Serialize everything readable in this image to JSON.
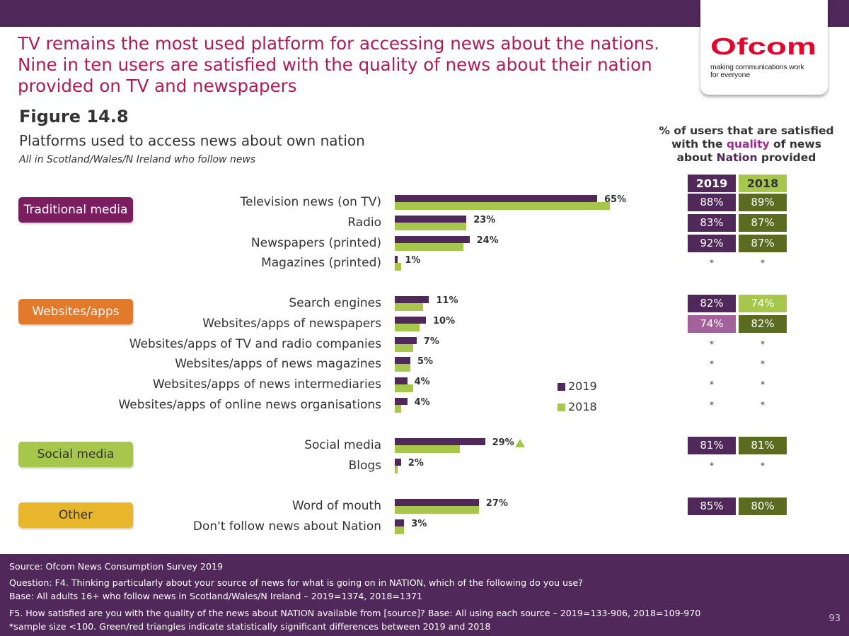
{
  "headline": [
    "TV remains the most used platform for accessing news about the nations.",
    "Nine in ten users are satisfied with the quality of news about their nation",
    "provided on TV and newspapers"
  ],
  "logo": {
    "word": "Ofcom",
    "tagline_1": "making communications work",
    "tagline_2": "for everyone",
    "color": "#e3052a"
  },
  "figure": {
    "number": "Figure 14.8",
    "title": "Platforms used to access news about own nation",
    "base": "All in Scotland/Wales/N Ireland  who follow news"
  },
  "satisfaction_heading": {
    "line1": "% of users that are satisfied",
    "line2_pre": "with the ",
    "line2_hl": "quality",
    "line2_post": " of news",
    "line3_pre": "about ",
    "line3_hl": "Nation",
    "line3_post": " provided"
  },
  "colors": {
    "y2019": "#51285a",
    "y2018": "#a6c74b",
    "traditional": "#7a1e5f",
    "websites": "#e37a2b",
    "social": "#a6c74b",
    "other": "#e8b62c",
    "sat_2019": "#51285a",
    "sat_2018_dark": "#5b6b20",
    "sat_2018_light": "#a6c74b",
    "sat_2019_light": "#a3619c"
  },
  "categories": [
    {
      "label": "Traditional media",
      "key": "traditional",
      "dark": false
    },
    {
      "label": "Websites/apps",
      "key": "websites",
      "dark": false
    },
    {
      "label": "Social media",
      "key": "social",
      "dark": true
    },
    {
      "label": "Other",
      "key": "other",
      "dark": true
    }
  ],
  "legend": [
    "2019",
    "2018"
  ],
  "satisfaction_years": [
    "2019",
    "2018"
  ],
  "chart_data": {
    "type": "bar",
    "orientation": "horizontal",
    "title": "Platforms used to access news about own nation",
    "unit": "%",
    "series_names": [
      "2019",
      "2018"
    ],
    "rows": [
      {
        "label": "Television news (on TV)",
        "v2019": 65,
        "v2018": 69,
        "value_label": "65%",
        "sat2019": "88%",
        "sat2018": "89%",
        "sig_up": false
      },
      {
        "label": "Radio",
        "v2019": 23,
        "v2018": 23,
        "value_label": "23%",
        "sat2019": "83%",
        "sat2018": "87%",
        "sig_up": false
      },
      {
        "label": "Newspapers (printed)",
        "v2019": 24,
        "v2018": 22,
        "value_label": "24%",
        "sat2019": "92%",
        "sat2018": "87%",
        "sig_up": false
      },
      {
        "label": "Magazines (printed)",
        "v2019": 1,
        "v2018": 2,
        "value_label": "1%",
        "sat2019": "*",
        "sat2018": "*",
        "sig_up": false
      },
      {
        "label": "Search engines",
        "v2019": 11,
        "v2018": 9,
        "value_label": "11%",
        "sat2019": "82%",
        "sat2018": "74%",
        "sig_up": false
      },
      {
        "label": "Websites/apps of newspapers",
        "v2019": 10,
        "v2018": 8,
        "value_label": "10%",
        "sat2019": "74%",
        "sat2018": "82%",
        "sig_up": false
      },
      {
        "label": "Websites/apps of TV and radio companies",
        "v2019": 7,
        "v2018": 6,
        "value_label": "7%",
        "sat2019": "*",
        "sat2018": "*",
        "sig_up": false
      },
      {
        "label": "Websites/apps of news magazines",
        "v2019": 5,
        "v2018": 5,
        "value_label": "5%",
        "sat2019": "*",
        "sat2018": "*",
        "sig_up": false
      },
      {
        "label": "Websites/apps of news intermediaries",
        "v2019": 4,
        "v2018": 6,
        "value_label": "4%",
        "sat2019": "*",
        "sat2018": "*",
        "sig_up": false
      },
      {
        "label": "Websites/apps of online news organisations",
        "v2019": 4,
        "v2018": 2,
        "value_label": "4%",
        "sat2019": "*",
        "sat2018": "*",
        "sig_up": false
      },
      {
        "label": "Social media",
        "v2019": 29,
        "v2018": 21,
        "value_label": "29%",
        "sat2019": "81%",
        "sat2018": "81%",
        "sig_up": true
      },
      {
        "label": "Blogs",
        "v2019": 2,
        "v2018": 1,
        "value_label": "2%",
        "sat2019": "*",
        "sat2018": "*",
        "sig_up": false
      },
      {
        "label": "Word of mouth",
        "v2019": 27,
        "v2018": 27,
        "value_label": "27%",
        "sat2019": "85%",
        "sat2018": "80%",
        "sig_up": false
      },
      {
        "label": "Don't follow news about Nation",
        "v2019": 3,
        "v2018": 3,
        "value_label": "3%",
        "sat2019": "",
        "sat2018": "",
        "sig_up": false
      }
    ]
  },
  "footer": {
    "source": "Source: Ofcom News Consumption Survey 2019",
    "question": "Question: F4. Thinking particularly about your source of news for what is going on in NATION, which of the following do you use?",
    "base": "Base: All adults 16+ who follow news in Scotland/Wales/N Ireland – 2019=1374, 2018=1371",
    "f5": "F5. How satisfied are you with the quality of the news about NATION available from [source]?  Base: All using each source – 2019=133-906, 2018=109-970",
    "note": "*sample size <100. Green/red triangles indicate statistically significant differences between 2019 and 2018",
    "page": "93"
  }
}
